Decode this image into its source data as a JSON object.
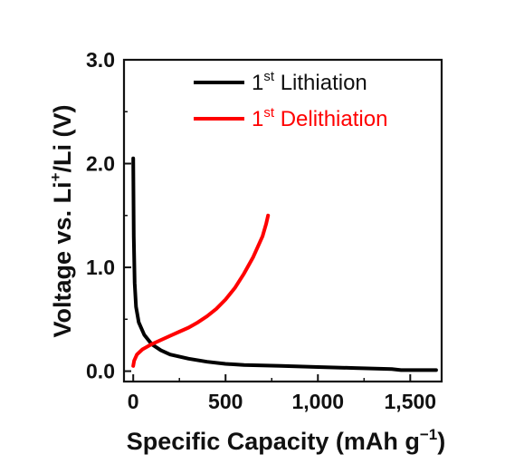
{
  "chart_data": {
    "type": "line",
    "xlabel": "Specific Capacity (mAh g",
    "xlabel_sup": "−1",
    "xlabel_end": ")",
    "ylabel_pre": "Voltage vs. Li",
    "ylabel_sup": "+",
    "ylabel_post": "/Li (V)",
    "xlim": [
      -50,
      1670
    ],
    "ylim": [
      -0.1,
      3.0
    ],
    "x_ticks": [
      0,
      500,
      1000,
      1500
    ],
    "x_tick_labels": [
      "0",
      "500",
      "1,000",
      "1,500"
    ],
    "y_ticks": [
      0.0,
      1.0,
      2.0,
      3.0
    ],
    "y_tick_labels": [
      "0.0",
      "1.0",
      "2.0",
      "3.0"
    ],
    "grid": false,
    "legend_position": "top-right",
    "series": [
      {
        "name_pre": "1",
        "name_sup": "st",
        "name_post": " Lithiation",
        "color": "#000000",
        "x": [
          0,
          3,
          8,
          15,
          30,
          60,
          100,
          150,
          200,
          300,
          400,
          500,
          600,
          800,
          1000,
          1200,
          1400,
          1450,
          1500,
          1640
        ],
        "y": [
          2.05,
          1.3,
          0.85,
          0.62,
          0.47,
          0.35,
          0.26,
          0.2,
          0.16,
          0.12,
          0.09,
          0.07,
          0.06,
          0.05,
          0.04,
          0.03,
          0.02,
          0.01,
          0.01,
          0.01
        ]
      },
      {
        "name_pre": "1",
        "name_sup": "st",
        "name_post": " Delithiation",
        "color": "#ff0000",
        "x": [
          0,
          5,
          20,
          50,
          100,
          150,
          200,
          250,
          300,
          350,
          400,
          450,
          500,
          550,
          600,
          650,
          700,
          720,
          730
        ],
        "y": [
          0.05,
          0.1,
          0.16,
          0.21,
          0.26,
          0.3,
          0.34,
          0.38,
          0.42,
          0.47,
          0.53,
          0.6,
          0.69,
          0.8,
          0.94,
          1.1,
          1.3,
          1.42,
          1.5
        ]
      }
    ]
  }
}
